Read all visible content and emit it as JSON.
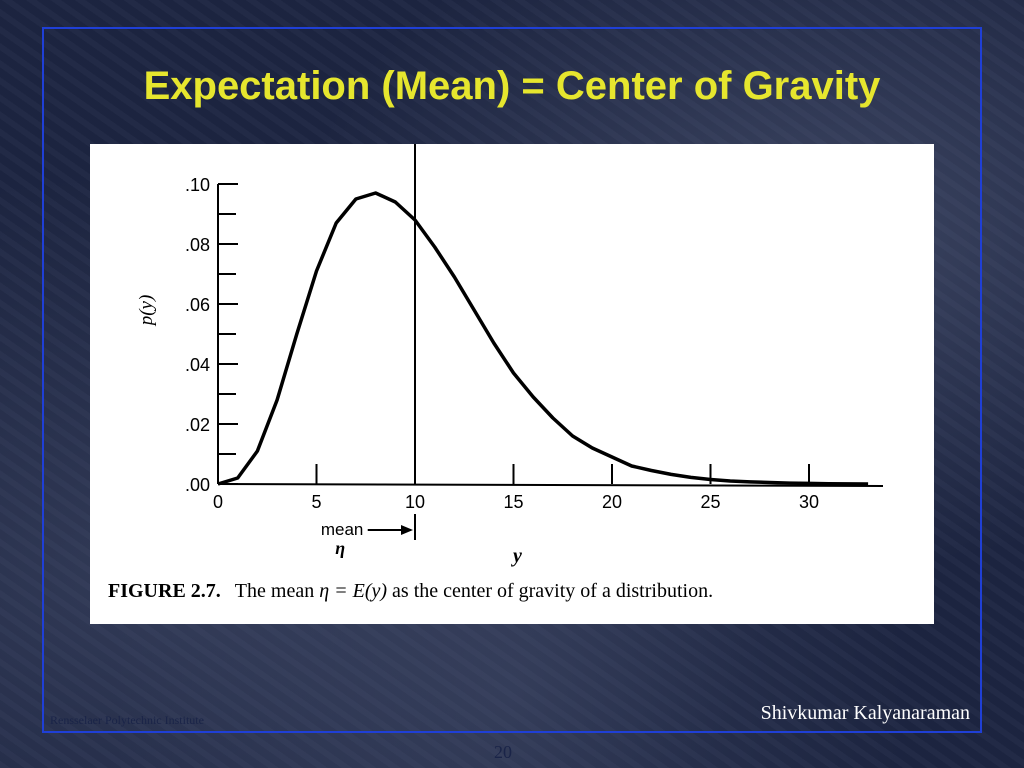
{
  "slide": {
    "title": "Expectation (Mean) = Center of Gravity",
    "footer_left": "Rensselaer Polytechnic Institute",
    "footer_right": "Shivkumar Kalyanaraman",
    "page_number": "20"
  },
  "figure": {
    "caption_label": "FIGURE  2.7.",
    "caption_pre": "The mean ",
    "caption_math": "η = E(y)",
    "caption_post": " as the center of gravity of a distribution.",
    "mean_label": "mean",
    "mean_symbol": "η"
  },
  "chart_data": {
    "type": "line",
    "xlabel": "y",
    "ylabel": "p(y)",
    "xlim": [
      0,
      34
    ],
    "ylim": [
      0,
      0.1
    ],
    "x_ticks": [
      0,
      5,
      10,
      15,
      20,
      25,
      30
    ],
    "x_tick_labels": [
      "0",
      "5",
      "10",
      "15",
      "20",
      "25",
      "30"
    ],
    "y_ticks": [
      0,
      0.02,
      0.04,
      0.06,
      0.08,
      0.1
    ],
    "y_tick_labels": [
      ".00",
      ".02",
      ".04",
      ".06",
      ".08",
      ".10"
    ],
    "mean": 10,
    "series": [
      {
        "x": [
          0,
          1,
          2,
          3,
          4,
          5,
          6,
          7,
          8,
          9,
          10,
          11,
          12,
          13,
          14,
          15,
          16,
          17,
          18,
          19,
          20,
          21,
          22,
          23,
          24,
          25,
          26,
          27,
          28,
          29,
          30,
          31,
          32,
          33
        ],
        "values": [
          0.0,
          0.002,
          0.011,
          0.028,
          0.05,
          0.071,
          0.087,
          0.095,
          0.097,
          0.094,
          0.088,
          0.079,
          0.069,
          0.058,
          0.047,
          0.037,
          0.029,
          0.022,
          0.016,
          0.012,
          0.009,
          0.006,
          0.0045,
          0.0032,
          0.0022,
          0.0015,
          0.001,
          0.0007,
          0.0005,
          0.0003,
          0.0002,
          0.0001,
          5e-05,
          0.0
        ]
      }
    ]
  }
}
